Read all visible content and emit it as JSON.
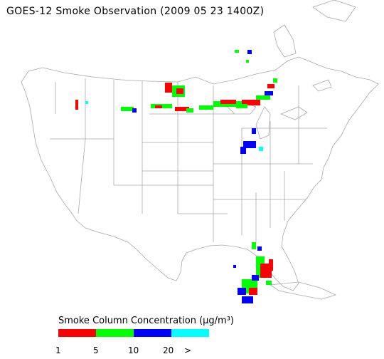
{
  "title": "GOES-12 Smoke Observation (2009 05 23  1400Z)",
  "legend": {
    "title": "Smoke Column Concentration (μg/m³)",
    "colors": [
      "#ff0000",
      "#00ff00",
      "#0000ff",
      "#00ffff"
    ],
    "ticks": [
      "1",
      "5",
      "10",
      "20",
      ">"
    ]
  }
}
